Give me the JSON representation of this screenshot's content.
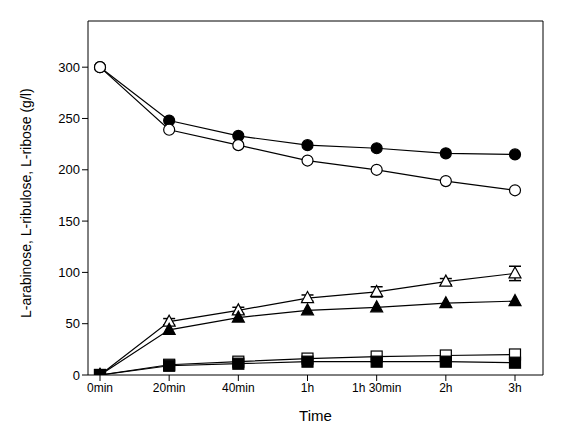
{
  "chart_data": {
    "type": "line",
    "x_label": "Time",
    "y_label": "L-arabinose, L-ribulose, L-ribose (g/l)",
    "categories": [
      "0min",
      "20min",
      "40min",
      "1h",
      "1h 30min",
      "2h",
      "3h"
    ],
    "ylim": [
      0,
      345
    ],
    "yticks": [
      0,
      50,
      100,
      150,
      200,
      250,
      300
    ],
    "grid": false,
    "series": [
      {
        "color": "#000000",
        "marker": "filled_circle",
        "line_style": "solid",
        "values": [
          300,
          248,
          233,
          224,
          221,
          216,
          215
        ]
      },
      {
        "color": "#000000",
        "marker": "open_circle",
        "line_style": "solid",
        "values": [
          300,
          239,
          224,
          209,
          200,
          189,
          180
        ]
      },
      {
        "color": "#000000",
        "marker": "open_triangle",
        "line_style": "solid",
        "values": [
          0,
          52,
          63,
          75,
          81,
          91,
          99
        ],
        "errors": [
          0,
          3,
          3,
          3,
          5,
          3,
          7
        ]
      },
      {
        "color": "#000000",
        "marker": "filled_triangle",
        "line_style": "solid",
        "values": [
          0,
          44,
          56,
          63,
          66,
          70,
          72
        ]
      },
      {
        "color": "#000000",
        "marker": "open_square",
        "line_style": "solid",
        "values": [
          0,
          10,
          13,
          16,
          18,
          19,
          20
        ]
      },
      {
        "color": "#000000",
        "marker": "filled_square",
        "line_style": "solid",
        "values": [
          0,
          9,
          11,
          13,
          13,
          13,
          12
        ]
      }
    ]
  }
}
